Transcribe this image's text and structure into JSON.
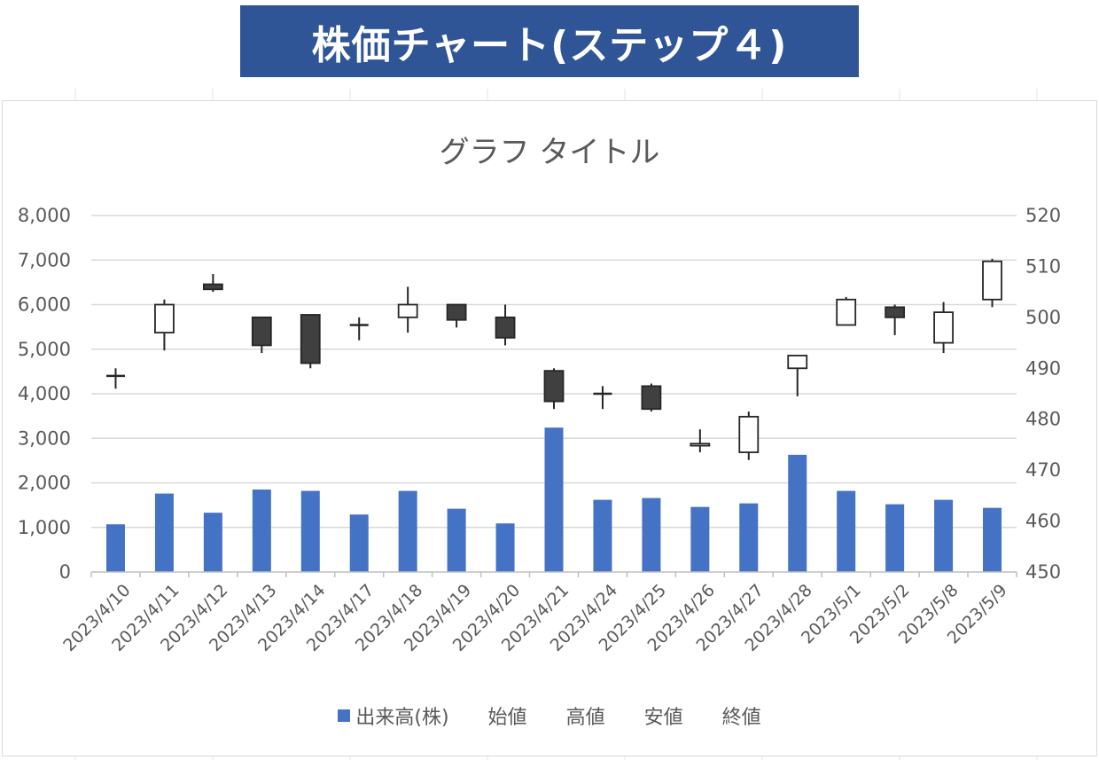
{
  "banner": {
    "title": "株価チャート(ステップ４)"
  },
  "chart_data": {
    "type": "bar",
    "title": "グラフ タイトル",
    "categories": [
      "2023/4/10",
      "2023/4/11",
      "2023/4/12",
      "2023/4/13",
      "2023/4/14",
      "2023/4/17",
      "2023/4/18",
      "2023/4/19",
      "2023/4/20",
      "2023/4/21",
      "2023/4/24",
      "2023/4/25",
      "2023/4/26",
      "2023/4/27",
      "2023/4/28",
      "2023/5/1",
      "2023/5/2",
      "2023/5/8",
      "2023/5/9"
    ],
    "volume_axis": {
      "range": [
        0,
        8000
      ],
      "ticks": [
        0,
        1000,
        2000,
        3000,
        4000,
        5000,
        6000,
        7000,
        8000
      ],
      "tick_labels": [
        "0",
        "1,000",
        "2,000",
        "3,000",
        "4,000",
        "5,000",
        "6,000",
        "7,000",
        "8,000"
      ]
    },
    "price_axis": {
      "range": [
        450,
        520
      ],
      "ticks": [
        450,
        460,
        470,
        480,
        490,
        500,
        510,
        520
      ],
      "tick_labels": [
        "450",
        "460",
        "470",
        "480",
        "490",
        "500",
        "510",
        "520"
      ]
    },
    "volume_series": {
      "name": "出来高(株)",
      "color": "#4472c4",
      "values": [
        1070,
        1760,
        1330,
        1850,
        1820,
        1290,
        1820,
        1420,
        1090,
        3240,
        1620,
        1660,
        1460,
        1540,
        2630,
        1820,
        1520,
        1620,
        1440
      ]
    },
    "price_series_names": [
      "始値",
      "高値",
      "安値",
      "終値"
    ],
    "ohlc": {
      "open": [
        488.5,
        497.0,
        506.5,
        500.0,
        500.5,
        498.5,
        500.0,
        502.5,
        500.0,
        489.5,
        485.0,
        486.5,
        474.8,
        473.5,
        490.0,
        498.5,
        502.0,
        495.0,
        503.5
      ],
      "high": [
        490.0,
        503.5,
        508.5,
        500.0,
        500.5,
        500.0,
        506.0,
        502.5,
        502.5,
        490.0,
        486.5,
        487.0,
        478.0,
        481.5,
        492.5,
        504.0,
        502.5,
        503.0,
        511.5
      ],
      "low": [
        486.0,
        493.5,
        505.0,
        493.0,
        490.0,
        495.5,
        497.0,
        498.0,
        494.5,
        482.0,
        482.0,
        481.5,
        473.5,
        472.0,
        484.5,
        498.5,
        496.5,
        493.0,
        502.0
      ],
      "close": [
        488.5,
        502.5,
        505.5,
        494.5,
        491.0,
        498.5,
        502.5,
        499.5,
        496.0,
        483.5,
        485.0,
        482.0,
        475.2,
        480.5,
        492.5,
        503.5,
        500.0,
        501.0,
        511.0
      ]
    },
    "up_color": "#ffffff",
    "down_color": "#404040",
    "grid": true,
    "legend_position": "bottom"
  }
}
